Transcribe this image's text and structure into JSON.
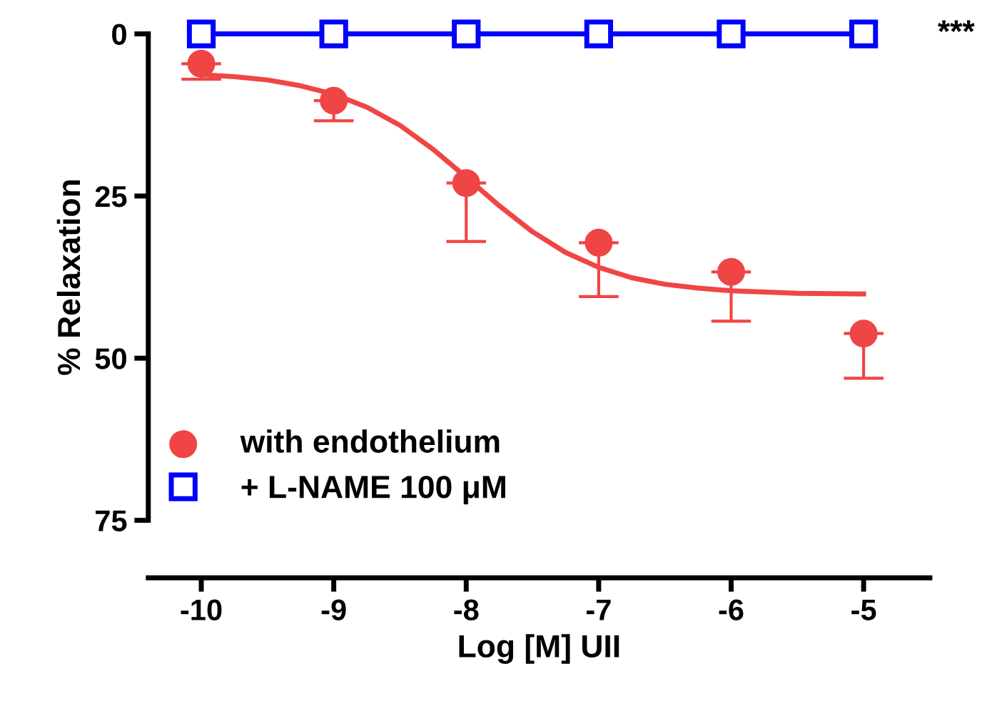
{
  "chart_data": {
    "type": "scatter",
    "xlabel": "Log [M] UII",
    "ylabel": "% Relaxation",
    "x": [
      -10,
      -9,
      -8,
      -7,
      -6,
      -5
    ],
    "series": [
      {
        "name": "with endothelium",
        "color": "#f04545",
        "marker": "circle",
        "values": [
          4.6,
          10.3,
          23.0,
          32.2,
          36.7,
          46.2
        ],
        "errors": [
          [
            4.6,
            7.0
          ],
          [
            10.3,
            13.4
          ],
          [
            23.0,
            32.0
          ],
          [
            32.2,
            40.5
          ],
          [
            36.7,
            44.3
          ],
          [
            46.2,
            53.1
          ]
        ]
      },
      {
        "name": "+ L-NAME 100 μM",
        "type": "line",
        "color": "#0000ff",
        "marker": "square",
        "line_style": "solid",
        "values": [
          0,
          0,
          0,
          0,
          0,
          0
        ]
      },
      {
        "type": "line",
        "color": "#f04545",
        "marker": "none",
        "line_style": "solid",
        "x": [
          -10,
          -9.75,
          -9.5,
          -9.25,
          -9,
          -8.75,
          -8.5,
          -8.25,
          -8,
          -7.75,
          -7.5,
          -7.25,
          -7,
          -6.75,
          -6.5,
          -6.25,
          -6,
          -5.5,
          -5
        ],
        "values": [
          6.3,
          6.6,
          7.1,
          8.0,
          9.3,
          11.3,
          14.1,
          17.8,
          22.1,
          26.5,
          30.5,
          33.7,
          36.0,
          37.6,
          38.6,
          39.2,
          39.6,
          40.0,
          40.1
        ]
      }
    ],
    "annotations": [
      "***"
    ],
    "xlim": [
      -10.4,
      -4.5
    ],
    "xticks": [
      -10,
      -9,
      -8,
      -7,
      -6,
      -5
    ],
    "ylim": [
      75,
      0
    ],
    "yticks": [
      0,
      25,
      50,
      75
    ],
    "grid": false,
    "legend": "bottom left"
  }
}
